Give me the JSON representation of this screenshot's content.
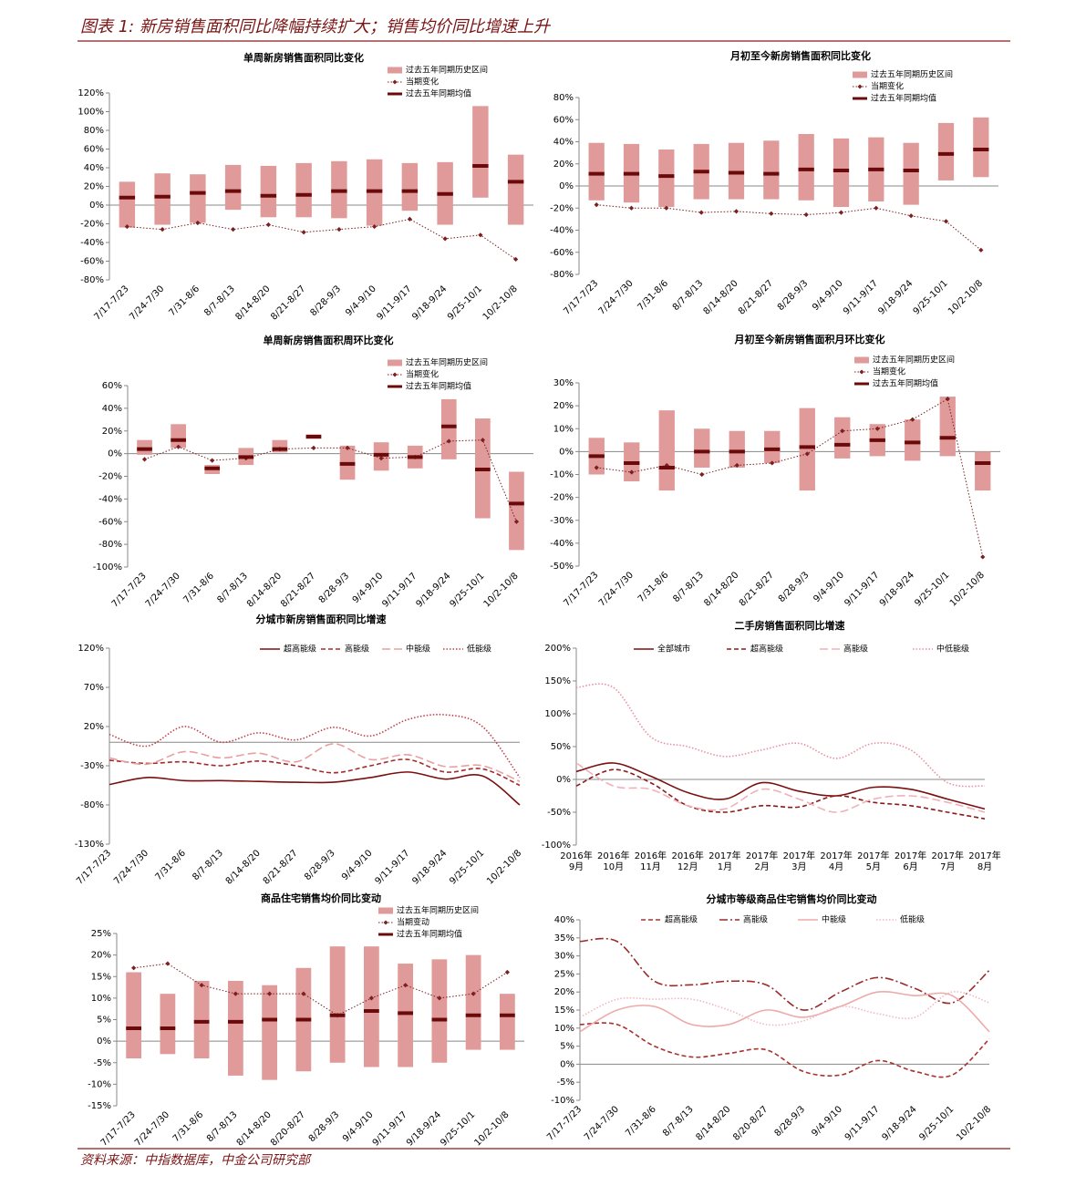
{
  "header": {
    "title": "图表 1: 新房销售面积同比降幅持续扩大；销售均价同比增速上升"
  },
  "footer": {
    "source": "资料来源：中指数据库，中金公司研究部"
  },
  "chart_data": [
    {
      "type": "range",
      "title": "单周新房销售面积同比变化",
      "legend": "top-right",
      "categories": [
        "7/17-7/23",
        "7/24-7/30",
        "7/31-8/6",
        "8/7-8/13",
        "8/14-8/20",
        "8/21-8/27",
        "8/28-9/3",
        "9/4-9/10",
        "9/11-9/17",
        "9/18-9/24",
        "9/25-10/1",
        "10/2-10/8"
      ],
      "series": [
        {
          "name": "过去五年同期历史区间",
          "kind": "range",
          "color": "#e09a9a",
          "low": [
            -24,
            -21,
            -19,
            -5,
            -13,
            -13,
            -14,
            -22,
            -6,
            -21,
            8,
            -21
          ],
          "high": [
            25,
            34,
            33,
            43,
            42,
            45,
            47,
            49,
            45,
            46,
            106,
            54
          ]
        },
        {
          "name": "当期变化",
          "kind": "current",
          "color": "#7b1f1f",
          "style": "dotted",
          "values": [
            -23,
            -26,
            -19,
            -26,
            -21,
            -29,
            -26,
            -23,
            -15,
            -36,
            -32,
            -58
          ]
        },
        {
          "name": "过去五年同期均值",
          "kind": "mean",
          "color": "#6b0a0a",
          "values": [
            8,
            9,
            13,
            15,
            10,
            11,
            15,
            15,
            15,
            12,
            42,
            25
          ]
        }
      ],
      "ylim": [
        -80,
        120
      ],
      "yticks": [
        {
          "value": -80,
          "label": "-80%"
        },
        {
          "value": -60,
          "label": "-60%"
        },
        {
          "value": -40,
          "label": "-40%"
        },
        {
          "value": -20,
          "label": "-20%"
        },
        {
          "value": 0,
          "label": "0%"
        },
        {
          "value": 20,
          "label": "20%"
        },
        {
          "value": 40,
          "label": "40%"
        },
        {
          "value": 60,
          "label": "60%"
        },
        {
          "value": 80,
          "label": "80%"
        },
        {
          "value": 100,
          "label": "100%"
        },
        {
          "value": 120,
          "label": "120%"
        }
      ]
    },
    {
      "type": "range",
      "title": "月初至今新房销售面积同比变化",
      "legend": "top-right",
      "categories": [
        "7/17-7/23",
        "7/24-7/30",
        "7/31-8/6",
        "8/7-8/13",
        "8/14-8/20",
        "8/21-8/27",
        "8/28-9/3",
        "9/4-9/10",
        "9/11-9/17",
        "9/18-9/24",
        "9/25-10/1",
        "10/2-10/8"
      ],
      "series": [
        {
          "name": "过去五年同期历史区间",
          "kind": "range",
          "color": "#e09a9a",
          "low": [
            -13,
            -15,
            -19,
            -12,
            -12,
            -12,
            -13,
            -19,
            -14,
            -17,
            5,
            8
          ],
          "high": [
            39,
            38,
            33,
            38,
            39,
            41,
            47,
            43,
            44,
            39,
            57,
            62
          ]
        },
        {
          "name": "当期变化",
          "kind": "current",
          "color": "#7b1f1f",
          "style": "dotted",
          "values": [
            -17,
            -20,
            -20,
            -24,
            -23,
            -25,
            -26,
            -24,
            -20,
            -27,
            -32,
            -58
          ]
        },
        {
          "name": "过去五年同期均值",
          "kind": "mean",
          "color": "#6b0a0a",
          "values": [
            11,
            11,
            9,
            13,
            12,
            11,
            15,
            14,
            15,
            14,
            29,
            33
          ]
        }
      ],
      "ylim": [
        -80,
        80
      ],
      "yticks": [
        {
          "value": -80,
          "label": "-80%"
        },
        {
          "value": -60,
          "label": "-60%"
        },
        {
          "value": -40,
          "label": "-40%"
        },
        {
          "value": -20,
          "label": "-20%"
        },
        {
          "value": 0,
          "label": "0%"
        },
        {
          "value": 20,
          "label": "20%"
        },
        {
          "value": 40,
          "label": "40%"
        },
        {
          "value": 60,
          "label": "60%"
        },
        {
          "value": 80,
          "label": "80%"
        }
      ]
    },
    {
      "type": "range",
      "title": "单周新房销售面积周环比变化",
      "legend": "top-right",
      "categories": [
        "7/17-7/23",
        "7/24-7/30",
        "7/31-8/6",
        "8/7-8/13",
        "8/14-8/20",
        "8/21-8/27",
        "8/28-9/3",
        "9/4-9/10",
        "9/11-9/17",
        "9/18-9/24",
        "9/25-10/1",
        "10/2-10/8"
      ],
      "series": [
        {
          "name": "过去五年同期历史区间",
          "kind": "range",
          "color": "#e09a9a",
          "low": [
            -1,
            5,
            -18,
            -10,
            1,
            13,
            -23,
            -15,
            -13,
            -5,
            -57,
            -85
          ],
          "high": [
            12,
            26,
            -10,
            5,
            12,
            17,
            7,
            10,
            7,
            48,
            31,
            -16
          ]
        },
        {
          "name": "当期变化",
          "kind": "current",
          "color": "#7b1f1f",
          "style": "dotted",
          "values": [
            -5,
            6,
            -6,
            -4,
            4,
            5,
            5,
            -4,
            -3,
            11,
            12,
            -60
          ]
        },
        {
          "name": "过去五年同期均值",
          "kind": "mean",
          "color": "#6b0a0a",
          "values": [
            4,
            12,
            -13,
            -3,
            4,
            15,
            -9,
            -1,
            -3,
            24,
            -14,
            -44
          ]
        }
      ],
      "ylim": [
        -100,
        60
      ],
      "yticks": [
        {
          "value": -100,
          "label": "-100%"
        },
        {
          "value": -80,
          "label": "-80%"
        },
        {
          "value": -60,
          "label": "-60%"
        },
        {
          "value": -40,
          "label": "-40%"
        },
        {
          "value": -20,
          "label": "-20%"
        },
        {
          "value": 0,
          "label": "0%"
        },
        {
          "value": 20,
          "label": "20%"
        },
        {
          "value": 40,
          "label": "40%"
        },
        {
          "value": 60,
          "label": "60%"
        }
      ]
    },
    {
      "type": "range",
      "title": "月初至今新房销售面积月环比变化",
      "legend": "top-right",
      "categories": [
        "7/17-7/23",
        "7/24-7/30",
        "7/31-8/6",
        "8/7-8/13",
        "8/14-8/20",
        "8/21-8/27",
        "8/28-9/3",
        "9/4-9/10",
        "9/11-9/17",
        "9/18-9/24",
        "9/25-10/1",
        "10/2-10/8"
      ],
      "series": [
        {
          "name": "过去五年同期历史区间",
          "kind": "range",
          "color": "#e09a9a",
          "low": [
            -10,
            -13,
            -17,
            -7,
            -7,
            -5,
            -17,
            -3,
            -2,
            -4,
            -2,
            -17
          ],
          "high": [
            6,
            4,
            18,
            10,
            9,
            9,
            19,
            15,
            12,
            14,
            24,
            0
          ]
        },
        {
          "name": "当期变化",
          "kind": "current",
          "color": "#7b1f1f",
          "style": "dotted",
          "values": [
            -7,
            -9,
            -6,
            -10,
            -6,
            -5,
            -1,
            9,
            10,
            14,
            23,
            -46
          ]
        },
        {
          "name": "过去五年同期均值",
          "kind": "mean",
          "color": "#6b0a0a",
          "values": [
            -2,
            -5,
            -7,
            0,
            0,
            1,
            2,
            3,
            5,
            4,
            6,
            -5
          ]
        }
      ],
      "ylim": [
        -50,
        30
      ],
      "yticks": [
        {
          "value": -50,
          "label": "-50%"
        },
        {
          "value": -40,
          "label": "-40%"
        },
        {
          "value": -30,
          "label": "-30%"
        },
        {
          "value": -20,
          "label": "-20%"
        },
        {
          "value": -10,
          "label": "-10%"
        },
        {
          "value": 0,
          "label": "0%"
        },
        {
          "value": 10,
          "label": "10%"
        },
        {
          "value": 20,
          "label": "20%"
        },
        {
          "value": 30,
          "label": "30%"
        }
      ]
    },
    {
      "type": "line",
      "title": "分城市新房销售面积同比增速",
      "legend": "top",
      "smooth": true,
      "categories": [
        "7/17-7/23",
        "7/24-7/30",
        "7/31-8/6",
        "8/7-8/13",
        "8/14-8/20",
        "8/21-8/27",
        "8/28-9/3",
        "9/4-9/10",
        "9/11-9/17",
        "9/18-9/24",
        "9/25-10/1",
        "10/2-10/8"
      ],
      "series": [
        {
          "name": "超高能级",
          "color": "#7a0f0f",
          "style": "solid",
          "values": [
            -54,
            -45,
            -49,
            -49,
            -50,
            -51,
            -51,
            -45,
            -38,
            -47,
            -43,
            -80
          ]
        },
        {
          "name": "高能级",
          "color": "#a52a2a",
          "style": "dashed",
          "values": [
            -23,
            -27,
            -25,
            -30,
            -24,
            -30,
            -39,
            -30,
            -22,
            -38,
            -34,
            -55
          ]
        },
        {
          "name": "中能级",
          "color": "#e8a0a0",
          "style": "longdash",
          "values": [
            -20,
            -28,
            -12,
            -20,
            -14,
            -25,
            -2,
            -22,
            -16,
            -31,
            -30,
            -50
          ]
        },
        {
          "name": "低能级",
          "color": "#c0404a",
          "style": "dotted",
          "values": [
            10,
            -5,
            20,
            0,
            12,
            3,
            19,
            8,
            29,
            35,
            20,
            -45
          ]
        }
      ],
      "ylim": [
        -130,
        120
      ],
      "yticks": [
        {
          "value": -130,
          "label": "-130%"
        },
        {
          "value": -80,
          "label": "-80%"
        },
        {
          "value": -30,
          "label": "-30%"
        },
        {
          "value": 20,
          "label": "20%"
        },
        {
          "value": 70,
          "label": "70%"
        },
        {
          "value": 120,
          "label": "120%"
        }
      ]
    },
    {
      "type": "line",
      "title": "二手房销售面积同比增速",
      "legend": "top",
      "smooth": true,
      "categories": [
        [
          "2016年",
          "9月"
        ],
        [
          "2016年",
          "10月"
        ],
        [
          "2016年",
          "11月"
        ],
        [
          "2016年",
          "12月"
        ],
        [
          "2017年",
          "1月"
        ],
        [
          "2017年",
          "2月"
        ],
        [
          "2017年",
          "3月"
        ],
        [
          "2017年",
          "4月"
        ],
        [
          "2017年",
          "5月"
        ],
        [
          "2017年",
          "6月"
        ],
        [
          "2017年",
          "7月"
        ],
        [
          "2017年",
          "8月"
        ]
      ],
      "series": [
        {
          "name": "全部城市",
          "color": "#7a0f0f",
          "style": "solid",
          "values": [
            12,
            25,
            5,
            -20,
            -30,
            -5,
            -18,
            -25,
            -12,
            -15,
            -30,
            -45
          ]
        },
        {
          "name": "超高能级",
          "color": "#8b1a1a",
          "style": "dashed",
          "values": [
            -10,
            15,
            -5,
            -40,
            -50,
            -40,
            -42,
            -25,
            -35,
            -40,
            -50,
            -60
          ]
        },
        {
          "name": "高能级",
          "color": "#f0b0b8",
          "style": "longdash",
          "values": [
            25,
            -10,
            -15,
            -40,
            -45,
            -15,
            -30,
            -50,
            -30,
            -25,
            -35,
            -50
          ]
        },
        {
          "name": "中低能级",
          "color": "#e890a0",
          "style": "dotted",
          "values": [
            140,
            140,
            65,
            50,
            35,
            45,
            55,
            32,
            55,
            45,
            -5,
            -10
          ]
        }
      ],
      "ylim": [
        -100,
        200
      ],
      "yticks": [
        {
          "value": -100,
          "label": "-100%"
        },
        {
          "value": -50,
          "label": "-50%"
        },
        {
          "value": 0,
          "label": "0%"
        },
        {
          "value": 50,
          "label": "50%"
        },
        {
          "value": 100,
          "label": "100%"
        },
        {
          "value": 150,
          "label": "150%"
        },
        {
          "value": 200,
          "label": "200%"
        }
      ]
    },
    {
      "type": "range",
      "title": "商品住宅销售均价同比变动",
      "legend": "top-right",
      "categories": [
        "7/17-7/23",
        "7/24-7/30",
        "7/31-8/6",
        "8/7-8/13",
        "8/14-8/20",
        "8/20-8/27",
        "8/28-9/3",
        "9/4-9/10",
        "9/11-9/17",
        "9/18-9/24",
        "9/25-10/1",
        "10/2-10/8"
      ],
      "series": [
        {
          "name": "过去五年同期历史区间",
          "kind": "range",
          "color": "#e09a9a",
          "low": [
            -4,
            -3,
            -4,
            -8,
            -9,
            -7,
            -5,
            -6,
            -6,
            -5,
            -2,
            -2
          ],
          "high": [
            16,
            11,
            14,
            14,
            13,
            17,
            22,
            22,
            18,
            19,
            20,
            11
          ]
        },
        {
          "name": "当期变动",
          "kind": "current",
          "color": "#7b1f1f",
          "style": "dotted",
          "values": [
            17,
            18,
            13,
            11,
            11,
            11,
            6,
            10,
            13,
            10,
            11,
            16
          ]
        },
        {
          "name": "过去五年同期均值",
          "kind": "mean",
          "color": "#6b0a0a",
          "values": [
            3,
            3,
            4.5,
            4.5,
            5,
            5,
            6,
            7,
            6.5,
            5,
            6,
            6
          ]
        }
      ],
      "ylim": [
        -15,
        25
      ],
      "yticks": [
        {
          "value": -15,
          "label": "-15%"
        },
        {
          "value": -10,
          "label": "-10%"
        },
        {
          "value": -5,
          "label": "-5%"
        },
        {
          "value": 0,
          "label": "0%"
        },
        {
          "value": 5,
          "label": "5%"
        },
        {
          "value": 10,
          "label": "10%"
        },
        {
          "value": 15,
          "label": "15%"
        },
        {
          "value": 20,
          "label": "20%"
        },
        {
          "value": 25,
          "label": "25%"
        }
      ]
    },
    {
      "type": "line",
      "title": "分城市等级商品住宅销售均价同比变动",
      "legend": "top",
      "smooth": true,
      "categories": [
        "7/17-7/23",
        "7/24-7/30",
        "7/31-8/6",
        "8/7-8/13",
        "8/14-8/20",
        "8/20-8/27",
        "8/28-9/3",
        "9/4-9/10",
        "9/11-9/17",
        "9/18-9/24",
        "9/25-10/1",
        "10/2-10/8"
      ],
      "series": [
        {
          "name": "超高能级",
          "color": "#a8332f",
          "style": "dashed",
          "values": [
            11,
            11,
            5,
            2,
            3,
            4,
            -2,
            -3,
            1,
            -2,
            -3,
            7
          ]
        },
        {
          "name": "高能级",
          "color": "#9b2a2a",
          "style": "dashdot",
          "values": [
            34,
            34,
            23,
            22,
            23,
            22,
            15,
            20,
            24,
            21,
            17,
            26
          ]
        },
        {
          "name": "中能级",
          "color": "#eeaaaa",
          "style": "solid",
          "values": [
            9,
            15,
            16,
            11,
            11,
            15,
            13,
            16,
            20,
            19,
            19,
            9
          ]
        },
        {
          "name": "低能级",
          "color": "#f0b8c0",
          "style": "dotted",
          "values": [
            13,
            18,
            18,
            18,
            15,
            11,
            12,
            16,
            14,
            13,
            20,
            17
          ]
        }
      ],
      "ylim": [
        -10,
        40
      ],
      "yticks": [
        {
          "value": -10,
          "label": "-10%"
        },
        {
          "value": -5,
          "label": "-5%"
        },
        {
          "value": 0,
          "label": "0%"
        },
        {
          "value": 5,
          "label": "5%"
        },
        {
          "value": 10,
          "label": "10%"
        },
        {
          "value": 15,
          "label": "15%"
        },
        {
          "value": 20,
          "label": "20%"
        },
        {
          "value": 25,
          "label": "25%"
        },
        {
          "value": 30,
          "label": "30%"
        },
        {
          "value": 35,
          "label": "35%"
        },
        {
          "value": 40,
          "label": "40%"
        }
      ]
    }
  ]
}
